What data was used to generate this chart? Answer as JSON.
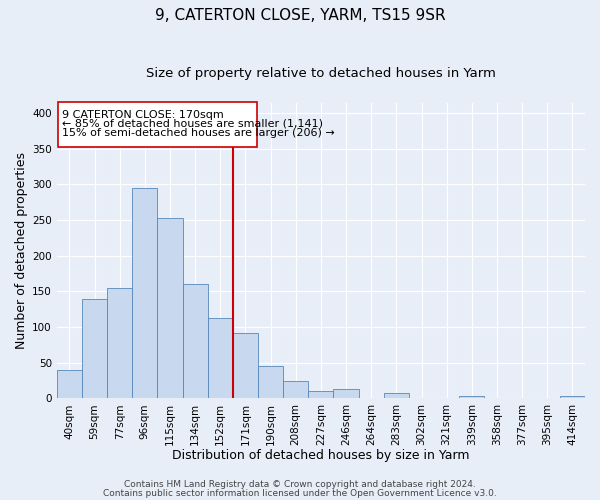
{
  "title": "9, CATERTON CLOSE, YARM, TS15 9SR",
  "subtitle": "Size of property relative to detached houses in Yarm",
  "xlabel": "Distribution of detached houses by size in Yarm",
  "ylabel": "Number of detached properties",
  "bar_labels": [
    "40sqm",
    "59sqm",
    "77sqm",
    "96sqm",
    "115sqm",
    "134sqm",
    "152sqm",
    "171sqm",
    "190sqm",
    "208sqm",
    "227sqm",
    "246sqm",
    "264sqm",
    "283sqm",
    "302sqm",
    "321sqm",
    "339sqm",
    "358sqm",
    "377sqm",
    "395sqm",
    "414sqm"
  ],
  "bar_values": [
    40,
    140,
    155,
    295,
    253,
    160,
    113,
    92,
    46,
    25,
    10,
    13,
    0,
    8,
    0,
    0,
    3,
    0,
    0,
    0,
    3
  ],
  "bar_color": "#c8d8ee",
  "bar_edge_color": "#5588bb",
  "vline_color": "#cc0000",
  "vline_pos": 7.0,
  "annotation_line1": "9 CATERTON CLOSE: 170sqm",
  "annotation_line2": "← 85% of detached houses are smaller (1,141)",
  "annotation_line3": "15% of semi-detached houses are larger (206) →",
  "ylim": [
    0,
    415
  ],
  "yticks": [
    0,
    50,
    100,
    150,
    200,
    250,
    300,
    350,
    400
  ],
  "footer_line1": "Contains HM Land Registry data © Crown copyright and database right 2024.",
  "footer_line2": "Contains public sector information licensed under the Open Government Licence v3.0.",
  "background_color": "#e8eef8",
  "plot_bg_color": "#e8eef8",
  "grid_color": "#ffffff",
  "title_fontsize": 11,
  "subtitle_fontsize": 9.5,
  "axis_label_fontsize": 9,
  "tick_label_fontsize": 7.5,
  "footer_fontsize": 6.5
}
